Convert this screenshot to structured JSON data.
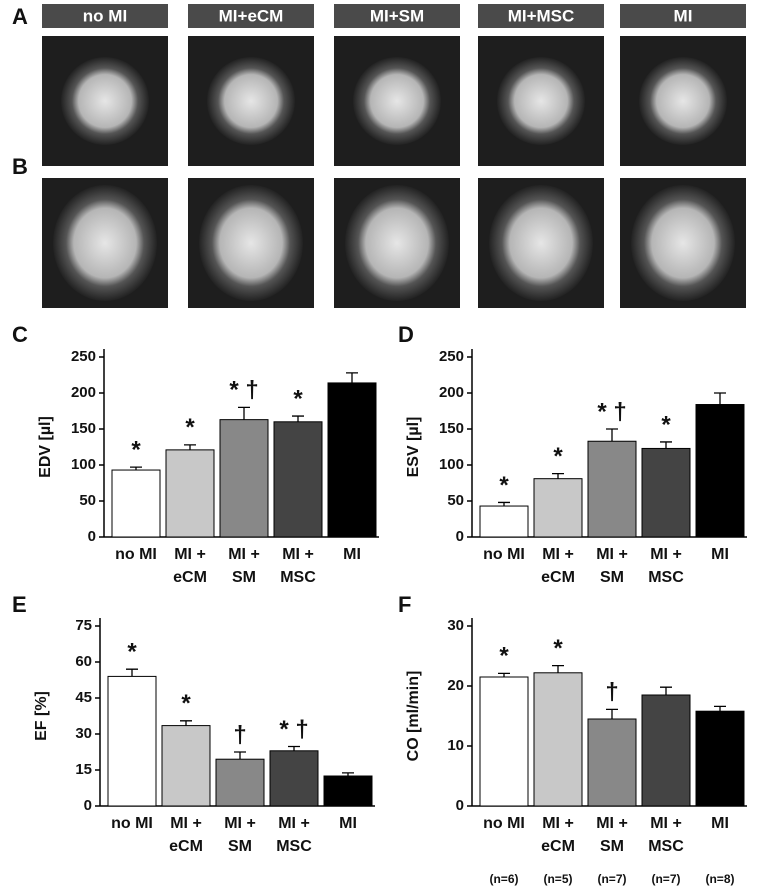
{
  "image_panels": {
    "rows": [
      "A",
      "B"
    ],
    "columns": [
      "no MI",
      "MI+eCM",
      "MI+SM",
      "MI+MSC",
      "MI"
    ]
  },
  "chart_data": [
    {
      "type": "bar",
      "label": "C",
      "y_label": "EDV [µl]",
      "categories": [
        [
          "no MI"
        ],
        [
          "MI +",
          "eCM"
        ],
        [
          "MI +",
          "SM"
        ],
        [
          "MI +",
          "MSC"
        ],
        [
          "MI"
        ]
      ],
      "values": [
        93,
        121,
        163,
        160,
        214
      ],
      "errors": [
        4,
        7,
        17,
        8,
        14
      ],
      "colors": [
        "#ffffff",
        "#c8c8c8",
        "#888888",
        "#444444",
        "#000000"
      ],
      "markers": [
        "*",
        "*",
        "* †",
        "*",
        null
      ],
      "ylim": [
        0,
        250
      ],
      "yticks": [
        0,
        50,
        100,
        150,
        200,
        250
      ]
    },
    {
      "type": "bar",
      "label": "D",
      "y_label": "ESV [µl]",
      "categories": [
        [
          "no MI"
        ],
        [
          "MI +",
          "eCM"
        ],
        [
          "MI +",
          "SM"
        ],
        [
          "MI +",
          "MSC"
        ],
        [
          "MI"
        ]
      ],
      "values": [
        43,
        81,
        133,
        123,
        184
      ],
      "errors": [
        5,
        7,
        17,
        9,
        16
      ],
      "colors": [
        "#ffffff",
        "#c8c8c8",
        "#888888",
        "#444444",
        "#000000"
      ],
      "markers": [
        "*",
        "*",
        "* †",
        "*",
        null
      ],
      "ylim": [
        0,
        250
      ],
      "yticks": [
        0,
        50,
        100,
        150,
        200,
        250
      ]
    },
    {
      "type": "bar",
      "label": "E",
      "y_label": "EF [%]",
      "categories": [
        [
          "no MI"
        ],
        [
          "MI +",
          "eCM"
        ],
        [
          "MI +",
          "SM"
        ],
        [
          "MI +",
          "MSC"
        ],
        [
          "MI"
        ]
      ],
      "values": [
        54,
        33.5,
        19.5,
        23,
        12.5
      ],
      "errors": [
        3,
        2,
        3,
        1.8,
        1.3
      ],
      "colors": [
        "#ffffff",
        "#c8c8c8",
        "#888888",
        "#444444",
        "#000000"
      ],
      "markers": [
        "*",
        "*",
        "†",
        "* †",
        null
      ],
      "ylim": [
        0,
        75
      ],
      "yticks": [
        0,
        15,
        30,
        45,
        60,
        75
      ]
    },
    {
      "type": "bar",
      "label": "F",
      "y_label": "CO [ml/min]",
      "categories": [
        [
          "no MI"
        ],
        [
          "MI +",
          "eCM"
        ],
        [
          "MI +",
          "SM"
        ],
        [
          "MI +",
          "MSC"
        ],
        [
          "MI"
        ]
      ],
      "values": [
        21.5,
        22.2,
        14.5,
        18.5,
        15.8
      ],
      "errors": [
        0.6,
        1.2,
        1.6,
        1.3,
        0.8
      ],
      "colors": [
        "#ffffff",
        "#c8c8c8",
        "#888888",
        "#444444",
        "#000000"
      ],
      "markers": [
        "*",
        "*",
        "†",
        null,
        null
      ],
      "n_labels": [
        "(n=6)",
        "(n=5)",
        "(n=7)",
        "(n=7)",
        "(n=8)"
      ],
      "ylim": [
        0,
        30
      ],
      "yticks": [
        0,
        10,
        20,
        30
      ]
    }
  ]
}
